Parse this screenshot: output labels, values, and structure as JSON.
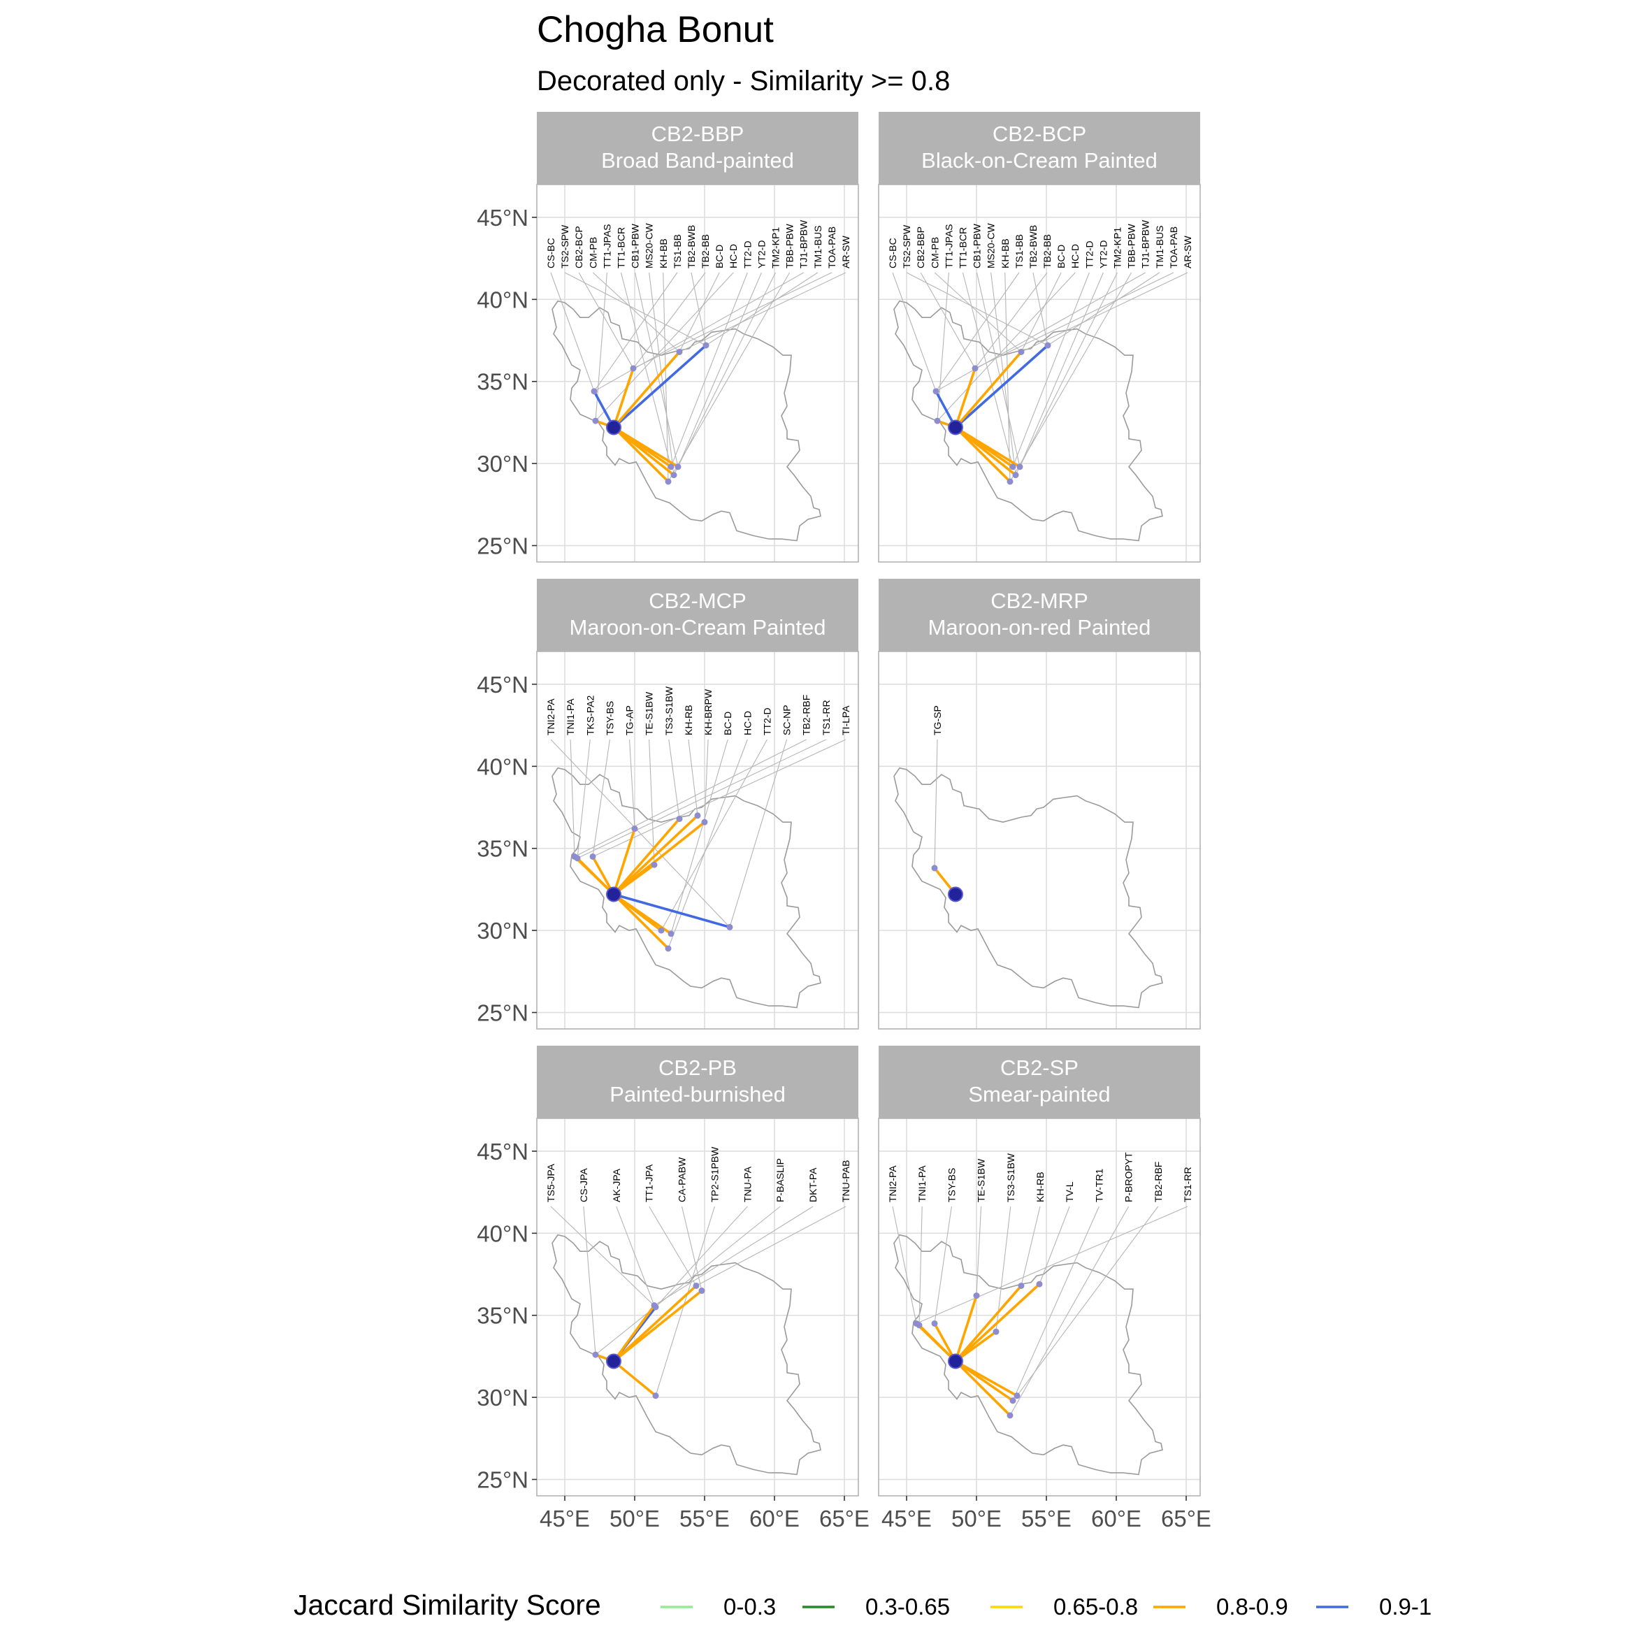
{
  "chart_data": {
    "type": "map",
    "title": "Chogha Bonut",
    "subtitle": "Decorated only - Similarity >= 0.8",
    "origin_site": {
      "lon": 48.5,
      "lat": 32.2
    },
    "xlim": [
      43,
      66
    ],
    "ylim": [
      24,
      47
    ],
    "x_ticks": [
      45,
      50,
      55,
      60,
      65
    ],
    "x_tick_labels": [
      "45°E",
      "50°E",
      "55°E",
      "60°E",
      "65°E"
    ],
    "y_ticks": [
      25,
      30,
      35,
      40,
      45
    ],
    "y_tick_labels": [
      "25°N",
      "30°N",
      "35°N",
      "40°N",
      "45°N"
    ],
    "legend": {
      "title": "Jaccard Similarity Score",
      "position": "bottom",
      "items": [
        {
          "label": "0-0.3",
          "color": "#90ee90"
        },
        {
          "label": "0.3-0.65",
          "color": "#228b22"
        },
        {
          "label": "0.65-0.8",
          "color": "#ffd700"
        },
        {
          "label": "0.8-0.9",
          "color": "#ffa500"
        },
        {
          "label": "0.9-1",
          "color": "#4169e1"
        }
      ]
    },
    "panels": [
      {
        "code": "CB2-BBP",
        "name": "Broad Band-painted",
        "labels": [
          "CS-BC",
          "TS2-SPW",
          "CB2-BCP",
          "CM-PB",
          "TT1-JPAS",
          "TT1-BCR",
          "CB1-PBW",
          "MS20-CW",
          "KH-BB",
          "TS1-BB",
          "TB2-BWB",
          "TB2-BB",
          "BC-D",
          "HC-D",
          "TT2-D",
          "YT2-D",
          "TM2-KP1",
          "TBB-PBW",
          "TJ1-BPBW",
          "TM1-BUS",
          "TOA-PAB",
          "AR-SW"
        ],
        "links": [
          {
            "lon": 47.1,
            "lat": 34.4,
            "band": "0.9-1"
          },
          {
            "lon": 55.1,
            "lat": 37.2,
            "band": "0.9-1"
          },
          {
            "lon": 49.9,
            "lat": 35.8,
            "band": "0.8-0.9"
          },
          {
            "lon": 53.2,
            "lat": 36.8,
            "band": "0.8-0.9"
          },
          {
            "lon": 47.2,
            "lat": 32.6,
            "band": "0.8-0.9"
          },
          {
            "lon": 52.6,
            "lat": 29.8,
            "band": "0.8-0.9"
          },
          {
            "lon": 53.1,
            "lat": 29.8,
            "band": "0.8-0.9"
          },
          {
            "lon": 52.8,
            "lat": 29.3,
            "band": "0.8-0.9"
          },
          {
            "lon": 52.4,
            "lat": 28.9,
            "band": "0.8-0.9"
          }
        ]
      },
      {
        "code": "CB2-BCP",
        "name": "Black-on-Cream Painted",
        "labels": [
          "CS-BC",
          "TS2-SPW",
          "CB2-BBP",
          "CM-PB",
          "TT1-JPAS",
          "TT1-BCR",
          "CB1-PBW",
          "MS20-CW",
          "KH-BB",
          "TS1-BB",
          "TB2-BWB",
          "TB2-BB",
          "BC-D",
          "HC-D",
          "TT2-D",
          "YT2-D",
          "TM2-KP1",
          "TBB-PBW",
          "TJ1-BPBW",
          "TM1-BUS",
          "TOA-PAB",
          "AR-SW"
        ],
        "links": [
          {
            "lon": 47.1,
            "lat": 34.4,
            "band": "0.9-1"
          },
          {
            "lon": 55.1,
            "lat": 37.2,
            "band": "0.9-1"
          },
          {
            "lon": 49.9,
            "lat": 35.8,
            "band": "0.8-0.9"
          },
          {
            "lon": 53.2,
            "lat": 36.8,
            "band": "0.8-0.9"
          },
          {
            "lon": 47.2,
            "lat": 32.6,
            "band": "0.8-0.9"
          },
          {
            "lon": 52.6,
            "lat": 29.8,
            "band": "0.8-0.9"
          },
          {
            "lon": 53.1,
            "lat": 29.8,
            "band": "0.8-0.9"
          },
          {
            "lon": 52.8,
            "lat": 29.3,
            "band": "0.8-0.9"
          },
          {
            "lon": 52.4,
            "lat": 28.9,
            "band": "0.8-0.9"
          }
        ]
      },
      {
        "code": "CB2-MCP",
        "name": "Maroon-on-Cream Painted",
        "labels": [
          "TNI2-PA",
          "TNI1-PA",
          "TKS-PA2",
          "TSY-BS",
          "TG-AP",
          "TE-S1BW",
          "TS3-S1BW",
          "KH-RB",
          "KH-BRPW",
          "BC-D",
          "HC-D",
          "TT2-D",
          "SC-NP",
          "TB2-RBF",
          "TS1-RR",
          "TI-LPA"
        ],
        "links": [
          {
            "lon": 56.8,
            "lat": 30.2,
            "band": "0.9-1"
          },
          {
            "lon": 45.7,
            "lat": 34.5,
            "band": "0.8-0.9"
          },
          {
            "lon": 45.9,
            "lat": 34.4,
            "band": "0.8-0.9"
          },
          {
            "lon": 47.0,
            "lat": 34.5,
            "band": "0.8-0.9"
          },
          {
            "lon": 50.0,
            "lat": 36.2,
            "band": "0.8-0.9"
          },
          {
            "lon": 51.4,
            "lat": 34.0,
            "band": "0.8-0.9"
          },
          {
            "lon": 53.2,
            "lat": 36.8,
            "band": "0.8-0.9"
          },
          {
            "lon": 54.5,
            "lat": 37.0,
            "band": "0.8-0.9"
          },
          {
            "lon": 55.0,
            "lat": 36.6,
            "band": "0.8-0.9"
          },
          {
            "lon": 52.6,
            "lat": 29.8,
            "band": "0.8-0.9"
          },
          {
            "lon": 52.4,
            "lat": 28.9,
            "band": "0.8-0.9"
          },
          {
            "lon": 51.9,
            "lat": 30.0,
            "band": "0.8-0.9"
          }
        ]
      },
      {
        "code": "CB2-MRP",
        "name": "Maroon-on-red Painted",
        "labels": [
          "TG-SP"
        ],
        "links": [
          {
            "lon": 47.0,
            "lat": 33.8,
            "band": "0.8-0.9"
          }
        ]
      },
      {
        "code": "CB2-PB",
        "name": "Painted-burnished",
        "labels": [
          "TS5-JPA",
          "CS-JPA",
          "AK-JPA",
          "TT1-JPA",
          "CA-PABW",
          "TP2-S1PBW",
          "TNU-PA",
          "P-BASLIP",
          "DKT-PA",
          "TNU-PAB"
        ],
        "links": [
          {
            "lon": 51.5,
            "lat": 35.5,
            "band": "0.9-1"
          },
          {
            "lon": 47.2,
            "lat": 32.6,
            "band": "0.8-0.9"
          },
          {
            "lon": 51.4,
            "lat": 35.6,
            "band": "0.8-0.9"
          },
          {
            "lon": 54.4,
            "lat": 36.8,
            "band": "0.8-0.9"
          },
          {
            "lon": 54.8,
            "lat": 36.5,
            "band": "0.8-0.9"
          },
          {
            "lon": 51.5,
            "lat": 30.1,
            "band": "0.8-0.9"
          }
        ]
      },
      {
        "code": "CB2-SP",
        "name": "Smear-painted",
        "labels": [
          "TNI2-PA",
          "TNI1-PA",
          "TSY-BS",
          "TE-S1BW",
          "TS3-S1BW",
          "KH-RB",
          "TV-L",
          "TV-TR1",
          "P-BROPYT",
          "TB2-RBF",
          "TS1-RR"
        ],
        "links": [
          {
            "lon": 45.7,
            "lat": 34.5,
            "band": "0.8-0.9"
          },
          {
            "lon": 45.9,
            "lat": 34.4,
            "band": "0.8-0.9"
          },
          {
            "lon": 47.0,
            "lat": 34.5,
            "band": "0.8-0.9"
          },
          {
            "lon": 50.0,
            "lat": 36.2,
            "band": "0.8-0.9"
          },
          {
            "lon": 51.4,
            "lat": 34.0,
            "band": "0.8-0.9"
          },
          {
            "lon": 53.2,
            "lat": 36.8,
            "band": "0.8-0.9"
          },
          {
            "lon": 54.5,
            "lat": 36.9,
            "band": "0.8-0.9"
          },
          {
            "lon": 52.6,
            "lat": 29.8,
            "band": "0.8-0.9"
          },
          {
            "lon": 52.4,
            "lat": 28.9,
            "band": "0.8-0.9"
          },
          {
            "lon": 52.9,
            "lat": 30.1,
            "band": "0.8-0.9"
          }
        ]
      }
    ]
  }
}
